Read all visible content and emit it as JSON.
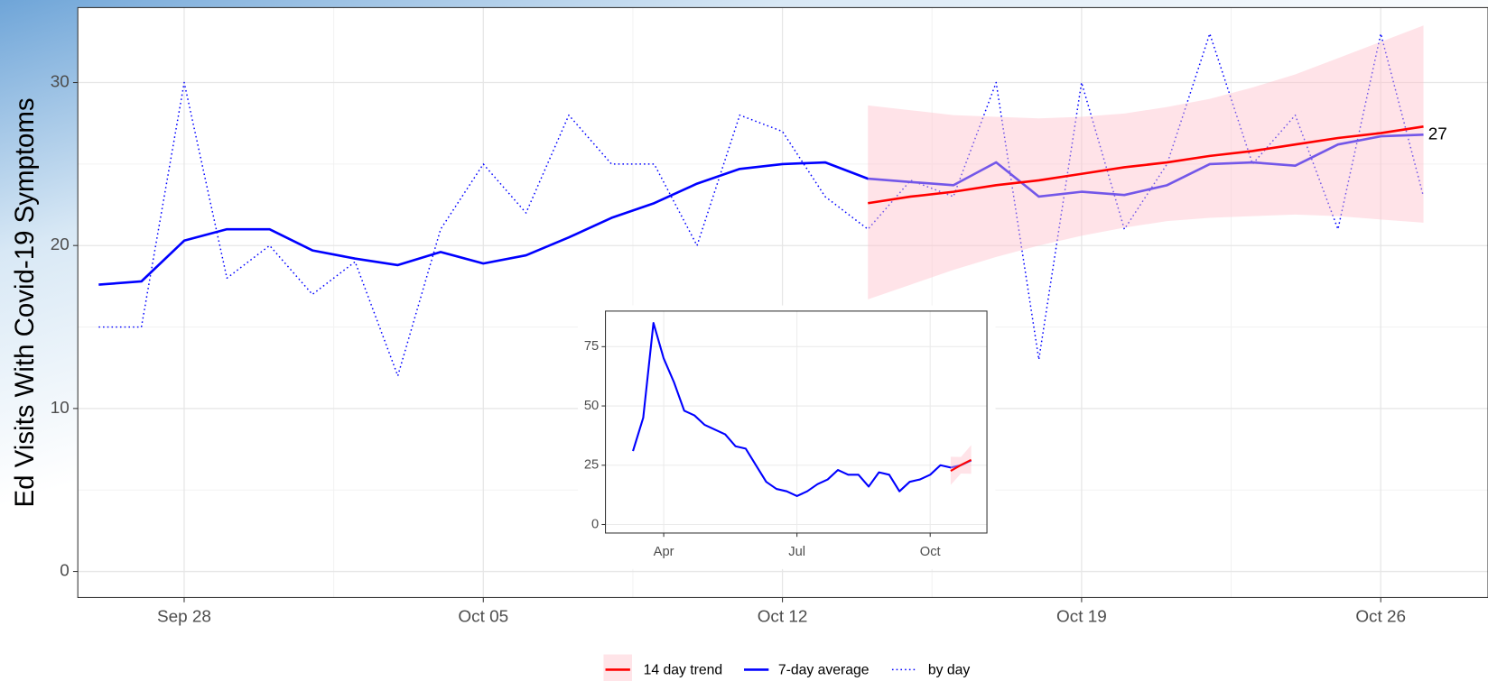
{
  "chart_data": [
    {
      "type": "line",
      "y_label": "Ed Visits With Covid-19 Symptoms",
      "x": [
        "Sep 26",
        "Sep 27",
        "Sep 28",
        "Sep 29",
        "Sep 30",
        "Oct 1",
        "Oct 2",
        "Oct 3",
        "Oct 4",
        "Oct 5",
        "Oct 6",
        "Oct 7",
        "Oct 8",
        "Oct 9",
        "Oct 10",
        "Oct 11",
        "Oct 12",
        "Oct 13",
        "Oct 14",
        "Oct 15",
        "Oct 16",
        "Oct 17",
        "Oct 18",
        "Oct 19",
        "Oct 20",
        "Oct 21",
        "Oct 22",
        "Oct 23",
        "Oct 24",
        "Oct 25",
        "Oct 26",
        "Oct 27"
      ],
      "xlim": [
        "Sep 26",
        "Oct 27"
      ],
      "xticks": [
        "Sep 28",
        "Oct 05",
        "Oct 12",
        "Oct 19",
        "Oct 26"
      ],
      "ylim": [
        -1.6,
        34.6
      ],
      "yticks": [
        0,
        10,
        20,
        30
      ],
      "grid": true,
      "legend": "bottom",
      "series": [
        {
          "name": "14 day trend",
          "color": "#ff0000",
          "band_color": "#ffc0cb",
          "values": [
            null,
            null,
            null,
            null,
            null,
            null,
            null,
            null,
            null,
            null,
            null,
            null,
            null,
            null,
            null,
            null,
            null,
            null,
            22.6,
            23.0,
            23.3,
            23.7,
            24.0,
            24.4,
            24.8,
            25.1,
            25.5,
            25.8,
            26.2,
            26.6,
            26.9,
            27.3
          ],
          "lower": [
            null,
            null,
            null,
            null,
            null,
            null,
            null,
            null,
            null,
            null,
            null,
            null,
            null,
            null,
            null,
            null,
            null,
            null,
            16.7,
            17.6,
            18.5,
            19.3,
            20.0,
            20.6,
            21.1,
            21.5,
            21.7,
            21.8,
            21.9,
            21.8,
            21.6,
            21.4
          ],
          "upper": [
            null,
            null,
            null,
            null,
            null,
            null,
            null,
            null,
            null,
            null,
            null,
            null,
            null,
            null,
            null,
            null,
            null,
            null,
            28.6,
            28.3,
            28.0,
            27.9,
            27.8,
            27.9,
            28.1,
            28.5,
            29.0,
            29.7,
            30.5,
            31.5,
            32.5,
            33.5
          ]
        },
        {
          "name": "7-day average",
          "color": "#0000ff",
          "style": "solid",
          "values": [
            17.6,
            17.8,
            20.3,
            21.0,
            21.0,
            19.7,
            19.2,
            18.8,
            19.6,
            18.9,
            19.4,
            20.5,
            21.7,
            22.6,
            23.8,
            24.7,
            25.0,
            25.1,
            24.1,
            23.9,
            23.7,
            25.1,
            23.0,
            23.3,
            23.1,
            23.7,
            25.0,
            25.1,
            24.9,
            26.2,
            26.7,
            26.8
          ]
        },
        {
          "name": "by day",
          "color": "#0000ff",
          "style": "dotted",
          "values": [
            15,
            15,
            30,
            18,
            20,
            17,
            19,
            12,
            21,
            25,
            22,
            28,
            25,
            25,
            20,
            28,
            27,
            23,
            21,
            24,
            23,
            30,
            13,
            30,
            21,
            25,
            33,
            25,
            28,
            21,
            33,
            23
          ]
        }
      ],
      "annotations": [
        {
          "text": "27",
          "x": "Oct 27",
          "y": 26.8
        }
      ]
    },
    {
      "type": "line",
      "categories": [
        null,
        null,
        null,
        "Apr",
        null,
        null,
        null,
        null,
        null,
        null,
        null,
        null,
        null,
        null,
        null,
        null,
        "Jul",
        null,
        null,
        null,
        null,
        null,
        null,
        null,
        null,
        null,
        null,
        null,
        null,
        "Oct",
        null,
        null,
        null,
        null
      ],
      "ylim": [
        -3.6,
        90
      ],
      "yticks": [
        0,
        25,
        50,
        75
      ],
      "series": [
        {
          "name": "14 day trend",
          "color": "#ff0000",
          "band_color": "#ffc0cb",
          "values": [
            null,
            null,
            null,
            null,
            null,
            null,
            null,
            null,
            null,
            null,
            null,
            null,
            null,
            null,
            null,
            null,
            null,
            null,
            null,
            null,
            null,
            null,
            null,
            null,
            null,
            null,
            null,
            null,
            null,
            null,
            null,
            22.6,
            25.1,
            27.3
          ],
          "lower": [
            null,
            null,
            null,
            null,
            null,
            null,
            null,
            null,
            null,
            null,
            null,
            null,
            null,
            null,
            null,
            null,
            null,
            null,
            null,
            null,
            null,
            null,
            null,
            null,
            null,
            null,
            null,
            null,
            null,
            null,
            null,
            16.7,
            21.5,
            21.4
          ],
          "upper": [
            null,
            null,
            null,
            null,
            null,
            null,
            null,
            null,
            null,
            null,
            null,
            null,
            null,
            null,
            null,
            null,
            null,
            null,
            null,
            null,
            null,
            null,
            null,
            null,
            null,
            null,
            null,
            null,
            null,
            null,
            null,
            28.6,
            28.5,
            33.5
          ]
        },
        {
          "name": "7-day average",
          "color": "#0000ff",
          "values": [
            31,
            45,
            85,
            70,
            60,
            48,
            46,
            42,
            40,
            38,
            33,
            32,
            25,
            18,
            15,
            14,
            12,
            14,
            17,
            19,
            23,
            21,
            21,
            16,
            22,
            21,
            14,
            18,
            19,
            21,
            25,
            24,
            25,
            27
          ]
        }
      ]
    }
  ]
}
